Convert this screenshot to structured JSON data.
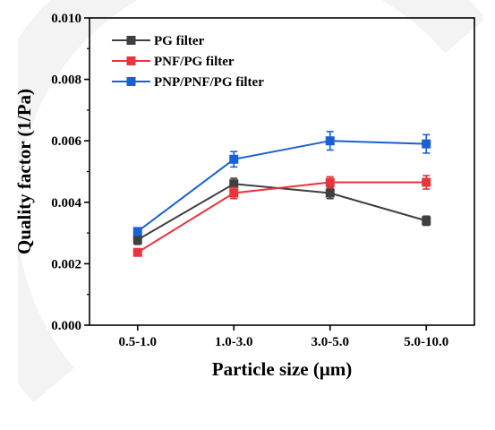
{
  "chart_data": {
    "type": "line",
    "xlabel": "Particle size (μm)",
    "ylabel": "Quality factor (1/Pa)",
    "categories": [
      "0.5-1.0",
      "1.0-3.0",
      "3.0-5.0",
      "5.0-10.0"
    ],
    "ylim": [
      0,
      0.01
    ],
    "yticks": [
      "0.000",
      "0.002",
      "0.004",
      "0.006",
      "0.008",
      "0.010"
    ],
    "legend_position": "top-left",
    "grid": false,
    "series": [
      {
        "name": "PG filter",
        "color": "#3f3f3f",
        "values": [
          0.00278,
          0.0046,
          0.0043,
          0.0034
        ],
        "errors": [
          0.00015,
          0.00018,
          0.00018,
          0.00015
        ]
      },
      {
        "name": "PNF/PG filter",
        "color": "#e8343a",
        "values": [
          0.00237,
          0.0043,
          0.00465,
          0.00465
        ],
        "errors": [
          0.0001,
          0.00018,
          0.00018,
          0.00022
        ]
      },
      {
        "name": "PNP/PNF/PG filter",
        "color": "#1a5fd6",
        "values": [
          0.00305,
          0.0054,
          0.006,
          0.0059
        ],
        "errors": [
          0.0001,
          0.00025,
          0.0003,
          0.0003
        ]
      }
    ]
  }
}
